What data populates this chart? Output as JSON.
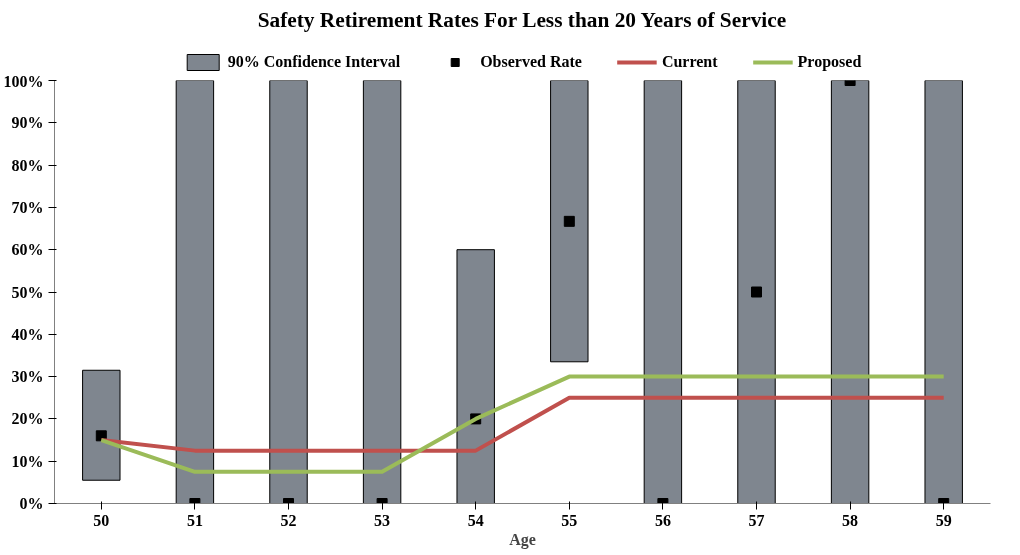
{
  "chart_data": {
    "type": "bar",
    "title": "Safety Retirement Rates For Less than 20 Years of Service",
    "xlabel": "Age",
    "categories": [
      "50",
      "51",
      "52",
      "53",
      "54",
      "55",
      "56",
      "57",
      "58",
      "59"
    ],
    "series": [
      {
        "name": "90% Confidence Interval",
        "type": "bar",
        "color": "#7f868f",
        "base": [
          5.5,
          0,
          0,
          0,
          0,
          33.5,
          0,
          0,
          0,
          0
        ],
        "values": [
          26,
          100,
          100,
          100,
          60,
          66.5,
          100,
          100,
          100,
          100
        ]
      },
      {
        "name": "Observed Rate",
        "type": "scatter",
        "marker": "square",
        "color": "#000000",
        "values": [
          16,
          0,
          0,
          0,
          20,
          66.7,
          0,
          50,
          100,
          0
        ]
      },
      {
        "name": "Current",
        "type": "line",
        "color": "#c0504d",
        "values": [
          15,
          12.5,
          12.5,
          12.5,
          12.5,
          25,
          25,
          25,
          25,
          25
        ]
      },
      {
        "name": "Proposed",
        "type": "line",
        "color": "#9bbb59",
        "values": [
          15,
          7.5,
          7.5,
          7.5,
          20,
          30,
          30,
          30,
          30,
          30
        ]
      }
    ],
    "ylim": [
      0,
      100
    ],
    "yticks": [
      {
        "value": 0,
        "label": "0%"
      },
      {
        "value": 10,
        "label": "10%"
      },
      {
        "value": 20,
        "label": "20%"
      },
      {
        "value": 30,
        "label": "30%"
      },
      {
        "value": 40,
        "label": "40%"
      },
      {
        "value": 50,
        "label": "50%"
      },
      {
        "value": 60,
        "label": "60%"
      },
      {
        "value": 70,
        "label": "70%"
      },
      {
        "value": 80,
        "label": "80%"
      },
      {
        "value": 90,
        "label": "90%"
      },
      {
        "value": 100,
        "label": "100%"
      }
    ],
    "grid": false,
    "legend": "top"
  }
}
